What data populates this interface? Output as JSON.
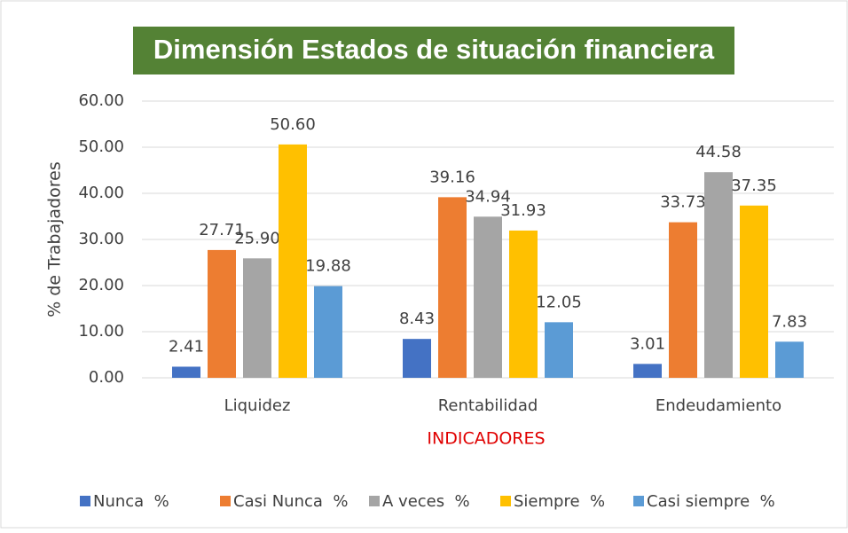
{
  "chart_data": {
    "type": "bar",
    "title": "Dimensión Estados de situación financiera",
    "y_label": "% de Trabajadores",
    "x_label": "INDICADORES",
    "categories": [
      "Liquidez",
      "Rentabilidad",
      "Endeudamiento"
    ],
    "series": [
      {
        "name": "Nunca  %",
        "color": "#4472c4",
        "values": [
          2.41,
          8.43,
          3.01
        ],
        "value_labels": [
          "2.41",
          "8.43",
          "3.01"
        ]
      },
      {
        "name": "Casi Nunca  %",
        "color": "#ed7d31",
        "values": [
          27.71,
          39.16,
          33.73
        ],
        "value_labels": [
          "27.71",
          "39.16",
          "33.73"
        ]
      },
      {
        "name": "A veces  %",
        "color": "#a5a5a5",
        "values": [
          25.9,
          34.94,
          44.58
        ],
        "value_labels": [
          "25.90",
          "34.94",
          "44.58"
        ]
      },
      {
        "name": "Siempre  %",
        "color": "#ffc000",
        "values": [
          50.6,
          31.93,
          37.35
        ],
        "value_labels": [
          "50.60",
          "31.93",
          "37.35"
        ]
      },
      {
        "name": "Casi siempre  %",
        "color": "#5b9bd5",
        "values": [
          19.88,
          12.05,
          7.83
        ],
        "value_labels": [
          "19.88",
          "12.05",
          "7.83"
        ]
      }
    ],
    "ylim": [
      0,
      60
    ],
    "yticks": [
      {
        "value": 0,
        "label": "0.00"
      },
      {
        "value": 10,
        "label": "10.00"
      },
      {
        "value": 20,
        "label": "20.00"
      },
      {
        "value": 30,
        "label": "30.00"
      },
      {
        "value": 40,
        "label": "40.00"
      },
      {
        "value": 50,
        "label": "50.00"
      },
      {
        "value": 60,
        "label": "60.00"
      }
    ],
    "grid": true,
    "legend": "bottom"
  }
}
